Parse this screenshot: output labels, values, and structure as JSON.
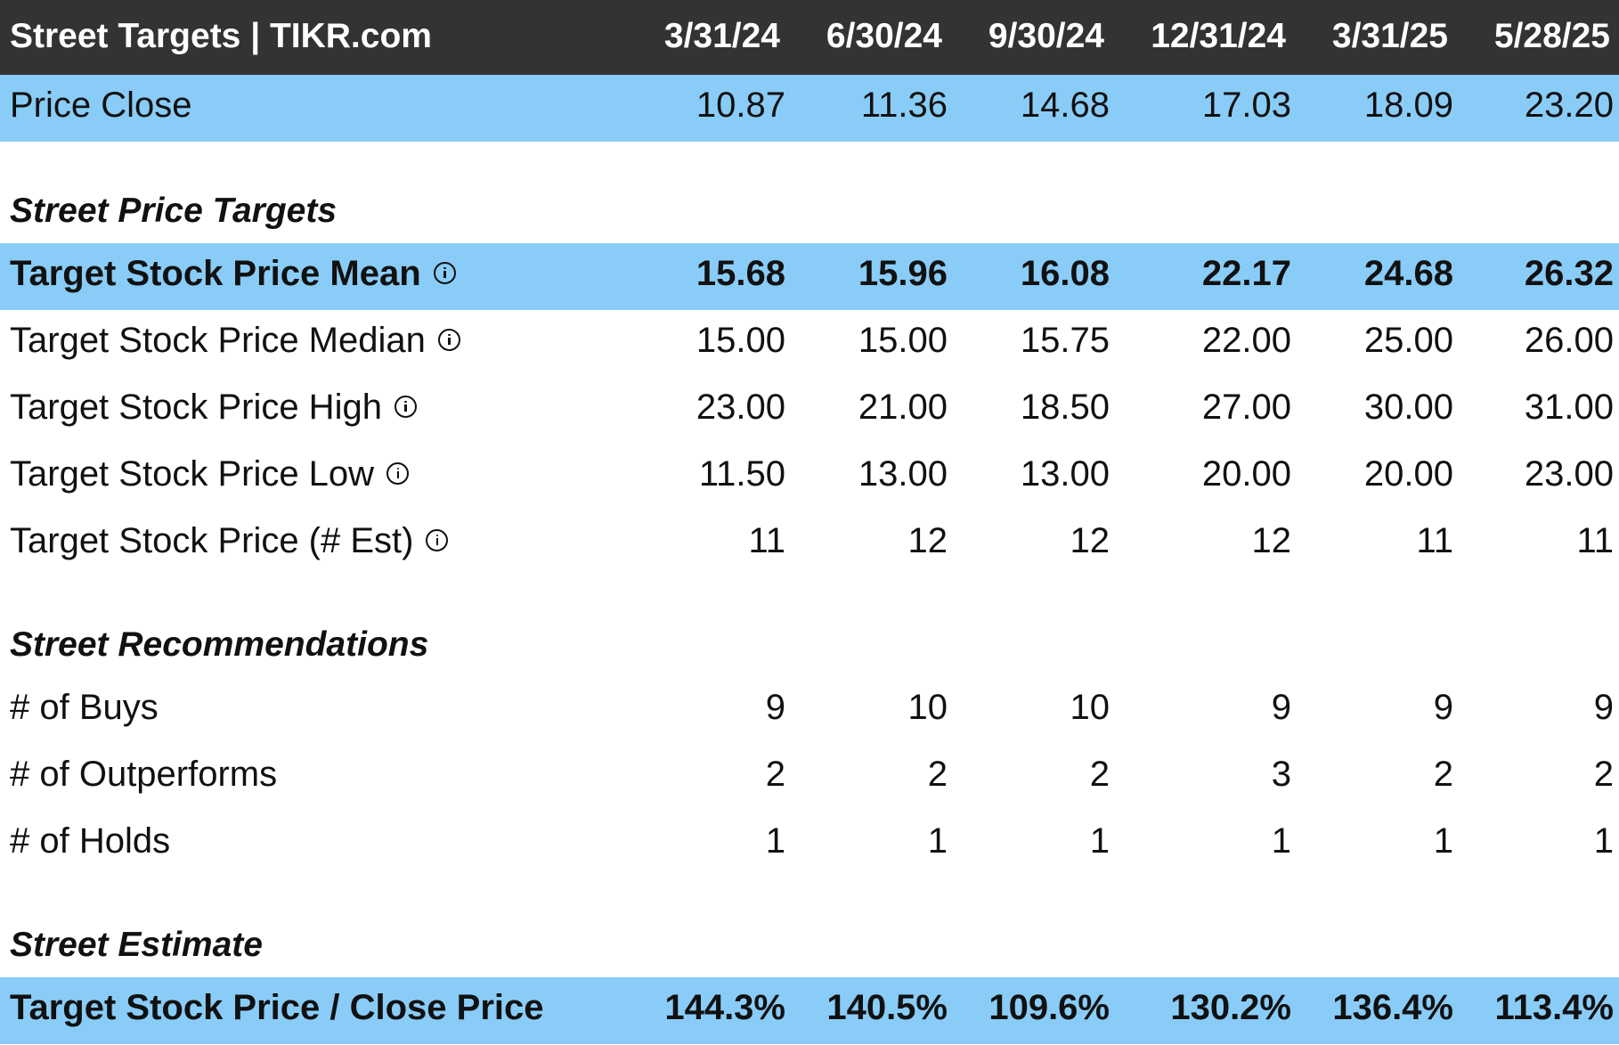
{
  "header": {
    "title": "Street Targets | TIKR.com",
    "dates": [
      "3/31/24",
      "6/30/24",
      "9/30/24",
      "12/31/24",
      "3/31/25",
      "5/28/25"
    ]
  },
  "price_close": {
    "label": "Price Close",
    "values": [
      "10.87",
      "11.36",
      "14.68",
      "17.03",
      "18.09",
      "23.20"
    ]
  },
  "price_targets": {
    "section_title": "Street Price Targets",
    "mean": {
      "label": "Target Stock Price Mean",
      "values": [
        "15.68",
        "15.96",
        "16.08",
        "22.17",
        "24.68",
        "26.32"
      ]
    },
    "median": {
      "label": "Target Stock Price Median",
      "values": [
        "15.00",
        "15.00",
        "15.75",
        "22.00",
        "25.00",
        "26.00"
      ]
    },
    "high": {
      "label": "Target Stock Price High",
      "values": [
        "23.00",
        "21.00",
        "18.50",
        "27.00",
        "30.00",
        "31.00"
      ]
    },
    "low": {
      "label": "Target Stock Price Low",
      "values": [
        "11.50",
        "13.00",
        "13.00",
        "20.00",
        "20.00",
        "23.00"
      ]
    },
    "num_est": {
      "label": "Target Stock Price (# Est)",
      "values": [
        "11",
        "12",
        "12",
        "12",
        "11",
        "11"
      ]
    }
  },
  "recommendations": {
    "section_title": "Street Recommendations",
    "buys": {
      "label": "# of Buys",
      "values": [
        "9",
        "10",
        "10",
        "9",
        "9",
        "9"
      ]
    },
    "outperforms": {
      "label": "# of Outperforms",
      "values": [
        "2",
        "2",
        "2",
        "3",
        "2",
        "2"
      ]
    },
    "holds": {
      "label": "# of Holds",
      "values": [
        "1",
        "1",
        "1",
        "1",
        "1",
        "1"
      ]
    }
  },
  "estimate": {
    "section_title": "Street Estimate",
    "target_to_close": {
      "label": "Target Stock Price / Close Price",
      "values": [
        "144.3%",
        "140.5%",
        "109.6%",
        "130.2%",
        "136.4%",
        "113.4%"
      ]
    }
  },
  "colors": {
    "header_bg": "#333333",
    "highlight_bg": "#89CCF7"
  }
}
